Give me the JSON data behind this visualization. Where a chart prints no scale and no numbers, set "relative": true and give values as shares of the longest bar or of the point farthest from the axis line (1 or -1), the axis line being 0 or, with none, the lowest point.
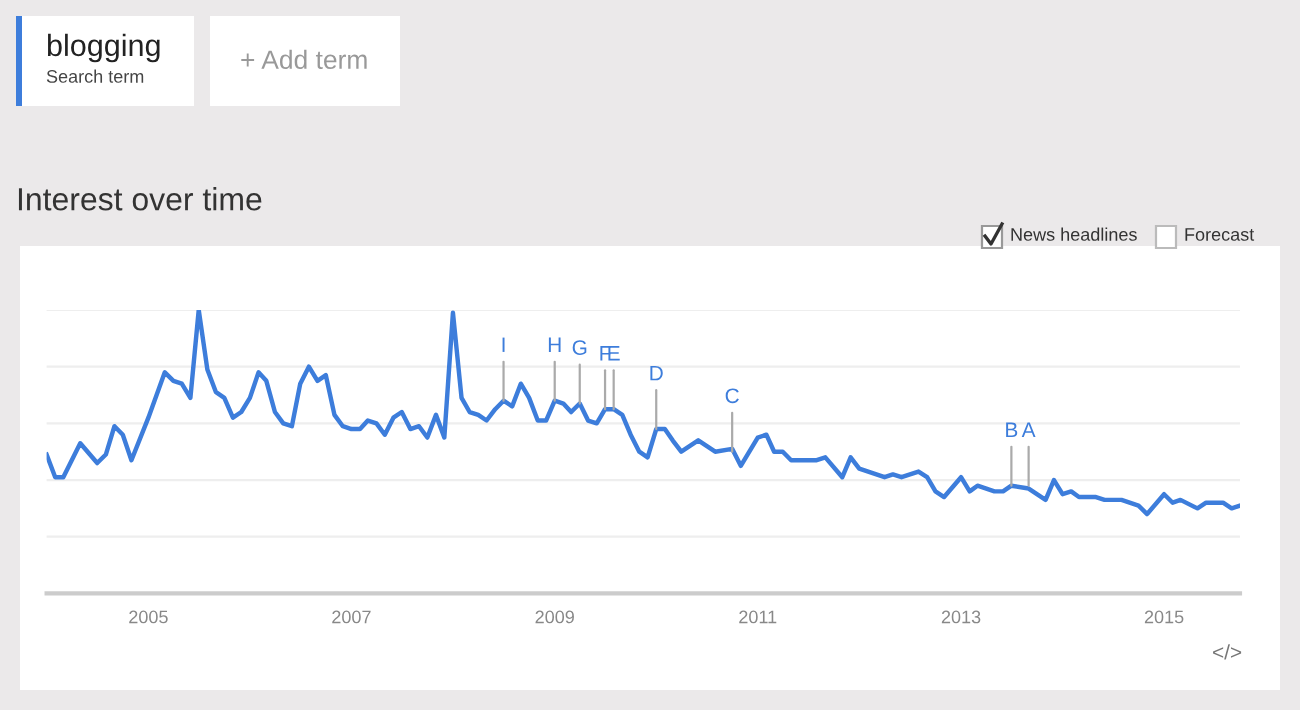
{
  "chart_data": {
    "type": "line",
    "title": "Interest over time",
    "relative": true,
    "grid": "y",
    "tick_labels": "x",
    "line_style": "solid",
    "marker": "none",
    "xlim": [
      "2004-01",
      "2015-10"
    ],
    "xticks": [
      {
        "value": "2005-01",
        "label": "2005"
      },
      {
        "value": "2007-01",
        "label": "2007"
      },
      {
        "value": "2009-01",
        "label": "2009"
      },
      {
        "value": "2011-01",
        "label": "2011"
      },
      {
        "value": "2013-01",
        "label": "2013"
      },
      {
        "value": "2015-01",
        "label": "2015"
      }
    ],
    "series": [
      {
        "color": "#3d7ddb",
        "x": [
          "2004-01",
          "2004-02",
          "2004-03",
          "2004-05",
          "2004-07",
          "2004-08",
          "2004-09",
          "2004-10",
          "2004-11",
          "2005-01",
          "2005-03",
          "2005-04",
          "2005-05",
          "2005-06",
          "2005-07",
          "2005-08",
          "2005-09",
          "2005-10",
          "2005-11",
          "2005-12",
          "2006-01",
          "2006-02",
          "2006-03",
          "2006-04",
          "2006-05",
          "2006-06",
          "2006-07",
          "2006-08",
          "2006-09",
          "2006-10",
          "2006-11",
          "2006-12",
          "2007-01",
          "2007-02",
          "2007-03",
          "2007-04",
          "2007-05",
          "2007-06",
          "2007-07",
          "2007-08",
          "2007-09",
          "2007-10",
          "2007-11",
          "2007-12",
          "2008-01",
          "2008-02",
          "2008-03",
          "2008-04",
          "2008-05",
          "2008-06",
          "2008-07",
          "2008-08",
          "2008-09",
          "2008-10",
          "2008-11",
          "2008-12",
          "2009-01",
          "2009-02",
          "2009-03",
          "2009-04",
          "2009-05",
          "2009-06",
          "2009-07",
          "2009-08",
          "2009-09",
          "2009-10",
          "2009-11",
          "2009-12",
          "2010-01",
          "2010-02",
          "2010-03",
          "2010-04",
          "2010-06",
          "2010-08",
          "2010-10",
          "2010-11",
          "2011-01",
          "2011-02",
          "2011-03",
          "2011-04",
          "2011-05",
          "2011-08",
          "2011-09",
          "2011-11",
          "2011-12",
          "2012-01",
          "2012-04",
          "2012-05",
          "2012-06",
          "2012-08",
          "2012-09",
          "2012-10",
          "2012-11",
          "2013-01",
          "2013-02",
          "2013-03",
          "2013-05",
          "2013-06",
          "2013-07",
          "2013-09",
          "2013-11",
          "2013-12",
          "2014-01",
          "2014-02",
          "2014-03",
          "2014-05",
          "2014-06",
          "2014-08",
          "2014-10",
          "2014-11",
          "2015-01",
          "2015-02",
          "2015-03",
          "2015-05",
          "2015-06",
          "2015-08",
          "2015-09",
          "2015-10"
        ],
        "values": [
          0.49,
          0.41,
          0.41,
          0.53,
          0.46,
          0.49,
          0.59,
          0.56,
          0.47,
          0.62,
          0.78,
          0.75,
          0.74,
          0.69,
          1.0,
          0.79,
          0.71,
          0.69,
          0.62,
          0.64,
          0.69,
          0.78,
          0.75,
          0.64,
          0.6,
          0.59,
          0.74,
          0.8,
          0.75,
          0.77,
          0.63,
          0.59,
          0.58,
          0.58,
          0.61,
          0.6,
          0.56,
          0.62,
          0.64,
          0.58,
          0.59,
          0.55,
          0.63,
          0.55,
          0.99,
          0.69,
          0.64,
          0.63,
          0.61,
          0.65,
          0.68,
          0.66,
          0.74,
          0.69,
          0.61,
          0.61,
          0.68,
          0.67,
          0.64,
          0.67,
          0.61,
          0.6,
          0.65,
          0.65,
          0.63,
          0.56,
          0.5,
          0.48,
          0.58,
          0.58,
          0.54,
          0.5,
          0.54,
          0.5,
          0.51,
          0.45,
          0.55,
          0.56,
          0.5,
          0.5,
          0.47,
          0.47,
          0.48,
          0.41,
          0.48,
          0.44,
          0.41,
          0.42,
          0.41,
          0.43,
          0.41,
          0.36,
          0.34,
          0.41,
          0.36,
          0.38,
          0.36,
          0.36,
          0.38,
          0.37,
          0.33,
          0.4,
          0.35,
          0.36,
          0.34,
          0.34,
          0.33,
          0.33,
          0.31,
          0.28,
          0.35,
          0.32,
          0.33,
          0.3,
          0.32,
          0.32,
          0.3,
          0.31
        ]
      }
    ],
    "annotations": [
      {
        "text": "I",
        "x": "2008-07",
        "y": 0.68
      },
      {
        "text": "H",
        "x": "2009-01",
        "y": 0.68
      },
      {
        "text": "G",
        "x": "2009-04",
        "y": 0.67
      },
      {
        "text": "F",
        "x": "2009-07",
        "y": 0.65
      },
      {
        "text": "E",
        "x": "2009-08",
        "y": 0.65
      },
      {
        "text": "D",
        "x": "2010-01",
        "y": 0.58
      },
      {
        "text": "C",
        "x": "2010-10",
        "y": 0.5
      },
      {
        "text": "B",
        "x": "2013-07",
        "y": 0.38
      },
      {
        "text": "A",
        "x": "2013-09",
        "y": 0.38
      },
      "blogging",
      "Search term",
      "+ Add term",
      "News headlines",
      "Forecast",
      "</>"
    ]
  }
}
